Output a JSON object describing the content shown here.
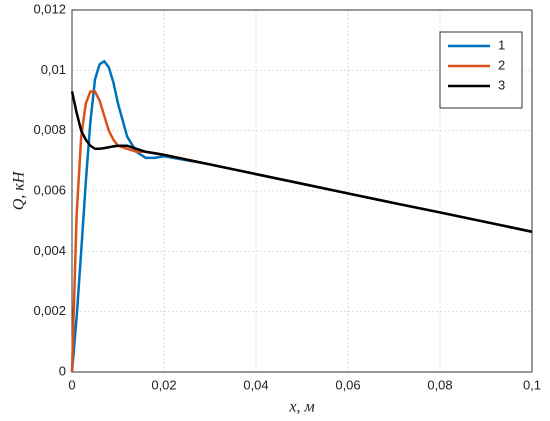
{
  "chart_data": {
    "type": "line",
    "xlabel": "x, м",
    "ylabel": "Q, кН",
    "x": [
      0,
      0.001,
      0.002,
      0.003,
      0.004,
      0.005,
      0.006,
      0.007,
      0.008,
      0.009,
      0.01,
      0.012,
      0.014,
      0.016,
      0.018,
      0.02,
      0.03,
      0.04,
      0.05,
      0.06,
      0.07,
      0.08,
      0.09,
      0.1
    ],
    "series": [
      {
        "name": "1",
        "color": "#0072bd",
        "values": [
          0,
          0.0018,
          0.004,
          0.0063,
          0.0083,
          0.0097,
          0.0102,
          0.0103,
          0.0101,
          0.0096,
          0.0089,
          0.0078,
          0.0073,
          0.0071,
          0.0071,
          0.00715,
          0.00688,
          0.00656,
          0.00624,
          0.00592,
          0.0056,
          0.00529,
          0.00497,
          0.00465
        ]
      },
      {
        "name": "2",
        "color": "#d95319",
        "values": [
          0,
          0.0052,
          0.0078,
          0.0089,
          0.0093,
          0.0093,
          0.009,
          0.0085,
          0.008,
          0.0077,
          0.0075,
          0.0074,
          0.0073,
          0.0073,
          0.00725,
          0.0072,
          0.00688,
          0.00656,
          0.00624,
          0.00592,
          0.0056,
          0.00529,
          0.00497,
          0.00465
        ]
      },
      {
        "name": "3",
        "color": "#000000",
        "values": [
          0.0093,
          0.0086,
          0.008,
          0.0077,
          0.0075,
          0.0074,
          0.0074,
          0.00742,
          0.00745,
          0.00748,
          0.0075,
          0.0075,
          0.0074,
          0.0073,
          0.00725,
          0.0072,
          0.00688,
          0.00656,
          0.00624,
          0.00592,
          0.0056,
          0.00529,
          0.00497,
          0.00465
        ]
      }
    ],
    "xlim": [
      0,
      0.1
    ],
    "xticks": [
      0,
      {
        "value": 0.02,
        "label": "0,02"
      },
      {
        "value": 0.04,
        "label": "0,04"
      },
      {
        "value": 0.06,
        "label": "0,06"
      },
      {
        "value": 0.08,
        "label": "0,08"
      },
      {
        "value": 0.1,
        "label": "0,1"
      }
    ],
    "ylim": [
      0,
      0.012
    ],
    "yticks": [
      0,
      {
        "value": 0.002,
        "label": "0,002"
      },
      {
        "value": 0.004,
        "label": "0,004"
      },
      {
        "value": 0.006,
        "label": "0,006"
      },
      {
        "value": 0.008,
        "label": "0,008"
      },
      {
        "value": 0.01,
        "label": "0,01"
      },
      {
        "value": 0.012,
        "label": "0,012"
      }
    ],
    "grid": true,
    "legend": "upper right"
  }
}
